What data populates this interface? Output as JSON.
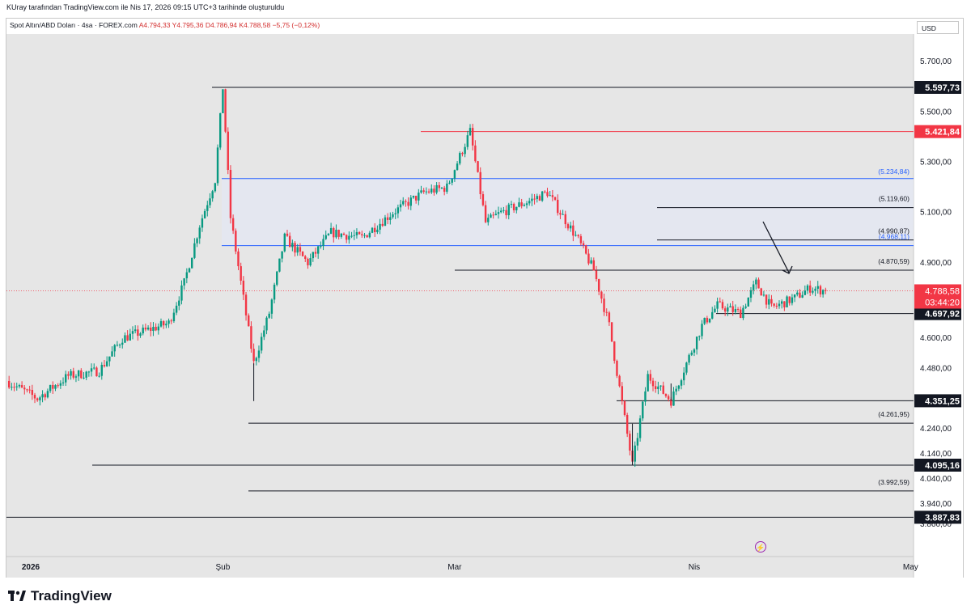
{
  "header": {
    "created_by": "KUray tarafından TradingView.com ile Nis 17, 2026 09:15 UTC+3 tarihinde oluşturuldu"
  },
  "info": {
    "symbol": "Spot Altın/ABD Doları · 4sa · FOREX.com",
    "open": "A4.794,33",
    "high": "Y4.795,36",
    "low": "D4.786,94",
    "close": "K4.788,58",
    "change": "−5,75 (−0,12%)"
  },
  "currency": "USD",
  "brand": "TradingView",
  "colors": {
    "up": "#089981",
    "down": "#f23645",
    "level": "#131722",
    "resistance": "#f23645",
    "zone_border": "#2962ff",
    "zone_fill": "#e3e7f3",
    "price_label": "#f23645",
    "grid": "#f0f3fa"
  },
  "chart_data": {
    "type": "candlestick",
    "title": "Spot Altın/ABD Doları · 4sa · FOREX.com",
    "y_axis": {
      "ticks": [
        "5.700,00",
        "5.500,00",
        "5.300,00",
        "5.100,00",
        "4.900,00",
        "4.600,00",
        "4.480,00",
        "4.240,00",
        "4.140,00",
        "4.040,00",
        "3.940,00",
        "3.860,00"
      ],
      "ylim": [
        3830,
        5780
      ]
    },
    "x_axis": {
      "ticks": [
        "2026",
        "Şub",
        "Mar",
        "Nis",
        "May"
      ]
    },
    "close_path": [
      [
        "2026-01-01",
        4430
      ],
      [
        "2026-01-05",
        4360
      ],
      [
        "2026-01-09",
        4450
      ],
      [
        "2026-01-13",
        4470
      ],
      [
        "2026-01-16",
        4600
      ],
      [
        "2026-01-20",
        4640
      ],
      [
        "2026-01-22",
        4660
      ],
      [
        "2026-01-24",
        4820
      ],
      [
        "2026-01-26",
        5050
      ],
      [
        "2026-01-28",
        5230
      ],
      [
        "2026-01-29",
        5597.73
      ],
      [
        "2026-01-30",
        5080
      ],
      [
        "2026-02-02",
        4500
      ],
      [
        "2026-02-04",
        4700
      ],
      [
        "2026-02-06",
        5000
      ],
      [
        "2026-02-09",
        4900
      ],
      [
        "2026-02-12",
        5020
      ],
      [
        "2026-02-16",
        5000
      ],
      [
        "2026-02-20",
        5100
      ],
      [
        "2026-02-24",
        5180
      ],
      [
        "2026-02-27",
        5200
      ],
      [
        "2026-03-02",
        5421.84
      ],
      [
        "2026-03-04",
        5060
      ],
      [
        "2026-03-06",
        5100
      ],
      [
        "2026-03-10",
        5150
      ],
      [
        "2026-03-12",
        5180
      ],
      [
        "2026-03-16",
        4990
      ],
      [
        "2026-03-18",
        4870
      ],
      [
        "2026-03-20",
        4650
      ],
      [
        "2026-03-23",
        4095.16
      ],
      [
        "2026-03-25",
        4450
      ],
      [
        "2026-03-28",
        4351.25
      ],
      [
        "2026-04-01",
        4650
      ],
      [
        "2026-04-03",
        4730
      ],
      [
        "2026-04-06",
        4700
      ],
      [
        "2026-04-08",
        4820
      ],
      [
        "2026-04-10",
        4720
      ],
      [
        "2026-04-13",
        4760
      ],
      [
        "2026-04-15",
        4800
      ],
      [
        "2026-04-17",
        4788.58
      ]
    ],
    "levels": [
      {
        "value": 5597.73,
        "label": "5.597,73",
        "style": "major"
      },
      {
        "value": 5421.84,
        "label": "5.421,84",
        "style": "resistance"
      },
      {
        "value": 5234.84,
        "label": "(5.234,84)",
        "style": "zone"
      },
      {
        "value": 5119.6,
        "label": "(5.119,60)",
        "style": "minor"
      },
      {
        "value": 4968.11,
        "label": "(4.968,11)",
        "style": "zone"
      },
      {
        "value": 4990.87,
        "label": "(4.990,87)",
        "style": "minor"
      },
      {
        "value": 4870.59,
        "label": "(4.870,59)",
        "style": "minor"
      },
      {
        "value": 4697.92,
        "label": "4.697,92",
        "style": "major"
      },
      {
        "value": 4351.25,
        "label": "4.351,25",
        "style": "major"
      },
      {
        "value": 4261.95,
        "label": "(4.261,95)",
        "style": "minor"
      },
      {
        "value": 4095.16,
        "label": "4.095,16",
        "style": "major"
      },
      {
        "value": 3992.59,
        "label": "(3.992,59)",
        "style": "minor"
      },
      {
        "value": 3887.83,
        "label": "3.887,83",
        "style": "major"
      }
    ],
    "current_price": {
      "value": 4788.58,
      "label": "4.788,58",
      "countdown": "03:44:20"
    }
  }
}
